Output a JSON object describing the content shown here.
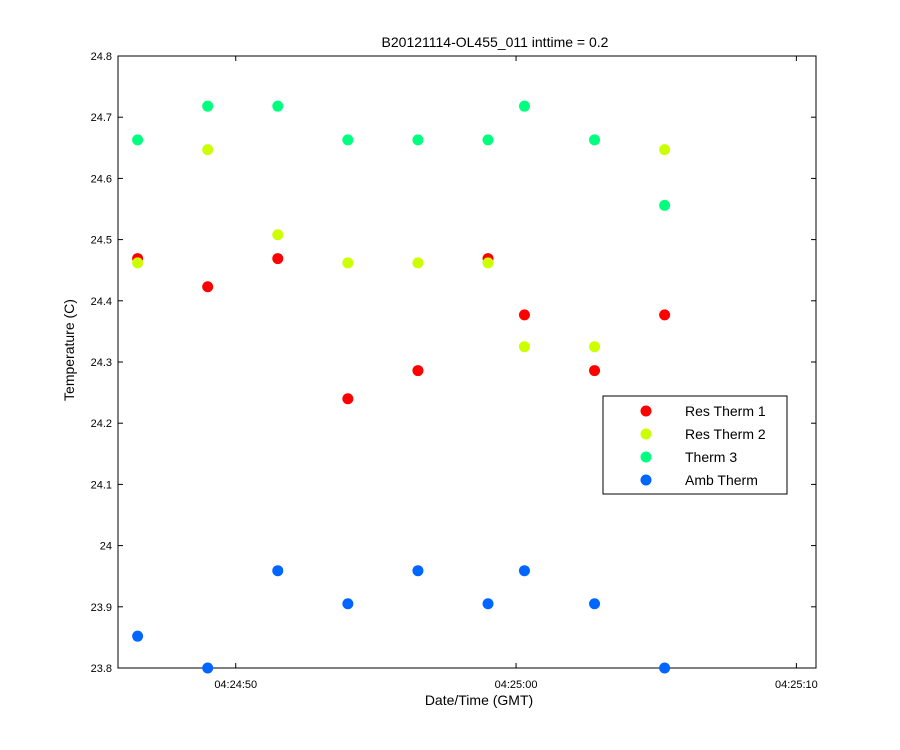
{
  "chart_data": {
    "type": "scatter",
    "title": "B20121114-OL455_011 inttime = 0.2",
    "xlabel": "Date/Time (GMT)",
    "ylabel": "Temperature (C)",
    "xlim": [
      "04:24:45.8",
      "04:25:10.7"
    ],
    "ylim": [
      23.8,
      24.8
    ],
    "x_ticks": [
      "04:24:50",
      "04:25:00",
      "04:25:10"
    ],
    "y_ticks": [
      23.8,
      23.9,
      24,
      24.1,
      24.2,
      24.3,
      24.4,
      24.5,
      24.6,
      24.7,
      24.8
    ],
    "x": [
      "04:24:46.5",
      "04:24:49",
      "04:24:51.5",
      "04:24:54",
      "04:24:56.5",
      "04:24:59",
      "04:25:00.3",
      "04:25:02.8",
      "04:25:05.3"
    ],
    "series": [
      {
        "name": "Res Therm 1",
        "color": "#ff0000",
        "values": [
          24.469,
          24.423,
          24.469,
          24.24,
          24.286,
          24.469,
          24.377,
          24.286,
          24.377
        ]
      },
      {
        "name": "Res Therm 2",
        "color": "#ccff00",
        "values": [
          24.462,
          24.647,
          24.508,
          24.462,
          24.462,
          24.462,
          24.325,
          24.325,
          24.647
        ]
      },
      {
        "name": "Therm 3",
        "color": "#00ff7f",
        "values": [
          24.663,
          24.718,
          24.718,
          24.663,
          24.663,
          24.663,
          24.718,
          24.663,
          24.556
        ]
      },
      {
        "name": "Amb Therm",
        "color": "#0066ff",
        "values": [
          23.852,
          23.8,
          23.959,
          23.905,
          23.959,
          23.905,
          23.959,
          23.905,
          23.8
        ]
      }
    ],
    "legend_position": "right",
    "grid": false
  }
}
